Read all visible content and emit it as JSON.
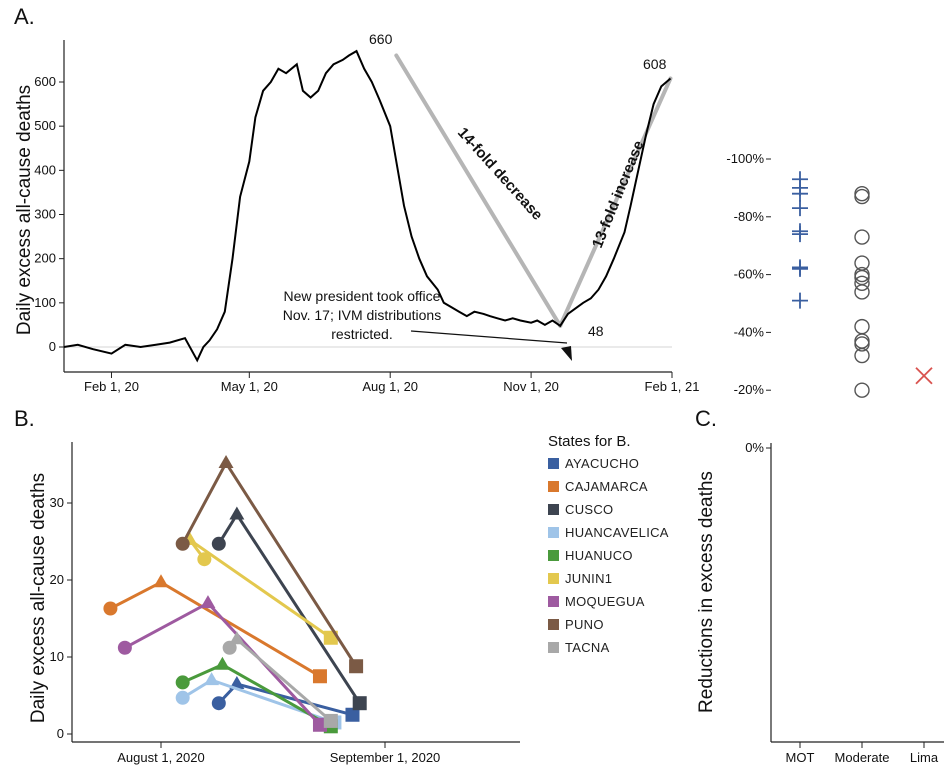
{
  "chart_data": [
    {
      "panel": "A.",
      "type": "line",
      "ylabel": "Daily excess all-cause deaths",
      "x_tick_labels": [
        "Feb 1, 20",
        "May 1, 20",
        "Aug 1, 20",
        "Nov 1, 20",
        "Feb 1, 21"
      ],
      "y_ticks": [
        0,
        100,
        200,
        300,
        400,
        500,
        600
      ],
      "ylim": [
        -30,
        700
      ],
      "xlim": [
        "2020-01-01",
        "2021-02-01"
      ],
      "series": [
        {
          "x": [
            "2020-01-01",
            "2020-01-10",
            "2020-01-20",
            "2020-02-01",
            "2020-02-10",
            "2020-02-20",
            "2020-03-01",
            "2020-03-10",
            "2020-03-20",
            "2020-03-28",
            "2020-04-01",
            "2020-04-05",
            "2020-04-10",
            "2020-04-15",
            "2020-04-20",
            "2020-04-25",
            "2020-05-01",
            "2020-05-05",
            "2020-05-10",
            "2020-05-15",
            "2020-05-20",
            "2020-05-25",
            "2020-06-01",
            "2020-06-05",
            "2020-06-10",
            "2020-06-15",
            "2020-06-20",
            "2020-06-25",
            "2020-07-01",
            "2020-07-05",
            "2020-07-10",
            "2020-07-15",
            "2020-07-20",
            "2020-07-25",
            "2020-08-01",
            "2020-08-05",
            "2020-08-10",
            "2020-08-15",
            "2020-08-20",
            "2020-08-25",
            "2020-09-01",
            "2020-09-05",
            "2020-09-10",
            "2020-09-15",
            "2020-09-20",
            "2020-09-25",
            "2020-10-01",
            "2020-10-05",
            "2020-10-10",
            "2020-10-15",
            "2020-10-20",
            "2020-10-25",
            "2020-11-01",
            "2020-11-05",
            "2020-11-10",
            "2020-11-15",
            "2020-11-20",
            "2020-11-25",
            "2020-12-01",
            "2020-12-05",
            "2020-12-10",
            "2020-12-15",
            "2020-12-20",
            "2020-12-25",
            "2021-01-01",
            "2021-01-05",
            "2021-01-10",
            "2021-01-15",
            "2021-01-20",
            "2021-01-25",
            "2021-01-31"
          ],
          "y": [
            0,
            5,
            -5,
            -15,
            5,
            0,
            5,
            10,
            20,
            -30,
            0,
            15,
            40,
            80,
            200,
            340,
            420,
            520,
            580,
            600,
            630,
            620,
            640,
            580,
            565,
            580,
            620,
            640,
            650,
            660,
            670,
            630,
            600,
            560,
            500,
            420,
            320,
            250,
            200,
            160,
            130,
            100,
            90,
            80,
            70,
            80,
            75,
            70,
            65,
            60,
            65,
            60,
            55,
            60,
            50,
            60,
            48,
            75,
            90,
            100,
            110,
            130,
            160,
            200,
            260,
            320,
            400,
            480,
            550,
            590,
            608
          ]
        }
      ],
      "annotations": {
        "peak_label": "660",
        "trough_label": "48",
        "end_label": "608",
        "decrease_label": "14-fold decrease",
        "increase_label": "13-fold increase",
        "note_line1": "New president took office",
        "note_line2": "Nov. 17; IVM distributions",
        "note_line3": "restricted."
      },
      "trend_lines": [
        {
          "from": [
            "2020-08-05",
            660
          ],
          "to": [
            "2020-11-20",
            48
          ]
        },
        {
          "from": [
            "2020-11-20",
            48
          ],
          "to": [
            "2021-01-31",
            608
          ]
        }
      ]
    },
    {
      "panel": "B.",
      "type": "line",
      "ylabel": "Daily excess all-cause deaths",
      "x_tick_labels": [
        "August 1, 2020",
        "September 1, 2020"
      ],
      "y_ticks": [
        0,
        10,
        20,
        30
      ],
      "ylim": [
        -1,
        37
      ],
      "legend_title": "States for B.",
      "legend_position": "right",
      "series": [
        {
          "name": "AYACUCHO",
          "color": "#3a5fa0",
          "points": [
            [
              8,
              4
            ],
            [
              10.5,
              6.5
            ],
            [
              26.5,
              2.5
            ]
          ]
        },
        {
          "name": "CAJAMARCA",
          "color": "#d9782d",
          "points": [
            [
              -7,
              16.3
            ],
            [
              0,
              19.7
            ],
            [
              22,
              7.5
            ]
          ]
        },
        {
          "name": "CUSCO",
          "color": "#3d4450",
          "points": [
            [
              8,
              24.7
            ],
            [
              10.5,
              28.5
            ],
            [
              27.5,
              4
            ]
          ]
        },
        {
          "name": "HUANCAVELICA",
          "color": "#9fc4e8",
          "points": [
            [
              3,
              4.7
            ],
            [
              7,
              7
            ],
            [
              24,
              1.5
            ]
          ]
        },
        {
          "name": "HUANUCO",
          "color": "#4a9a3c",
          "points": [
            [
              3,
              6.7
            ],
            [
              8.5,
              9
            ],
            [
              23.5,
              1
            ]
          ]
        },
        {
          "name": "JUNIN1",
          "color": "#e3c84e",
          "points": [
            [
              6,
              22.7
            ],
            [
              4,
              25.2
            ],
            [
              23.5,
              12.5
            ]
          ]
        },
        {
          "name": "MOQUEGUA",
          "color": "#9e5aa0",
          "points": [
            [
              -5,
              11.2
            ],
            [
              6.5,
              17
            ],
            [
              22,
              1.2
            ]
          ]
        },
        {
          "name": "PUNO",
          "color": "#7b5a45",
          "points": [
            [
              3,
              24.7
            ],
            [
              9,
              35.2
            ],
            [
              27,
              8.8
            ]
          ]
        },
        {
          "name": "TACNA",
          "color": "#a8a8a8",
          "points": [
            [
              9.5,
              11.2
            ],
            [
              10.5,
              12.3
            ],
            [
              23.5,
              1.7
            ]
          ]
        }
      ]
    },
    {
      "panel": "C.",
      "type": "scatter",
      "ylabel": "Reductions in excess deaths",
      "categories": [
        "MOT",
        "Moderate",
        "Lima"
      ],
      "y_tick_labels": [
        "0%",
        "-20%",
        "-40%",
        "-60%",
        "-80%",
        "-100%"
      ],
      "ylim": [
        -100,
        0
      ],
      "series": [
        {
          "category": "MOT",
          "marker": "plus",
          "color": "#3a5fa0",
          "values": [
            -51,
            -62,
            -62.5,
            -74,
            -75,
            -83,
            -88,
            -90,
            -93
          ]
        },
        {
          "category": "Moderate",
          "marker": "circle",
          "color": "#555555",
          "values": [
            -20,
            -32,
            -36,
            -37,
            -42,
            -54,
            -57,
            -59,
            -60,
            -64,
            -73,
            -87,
            -88
          ]
        },
        {
          "category": "Lima",
          "marker": "x",
          "color": "#d9534f",
          "values": [
            -25
          ]
        }
      ]
    }
  ]
}
